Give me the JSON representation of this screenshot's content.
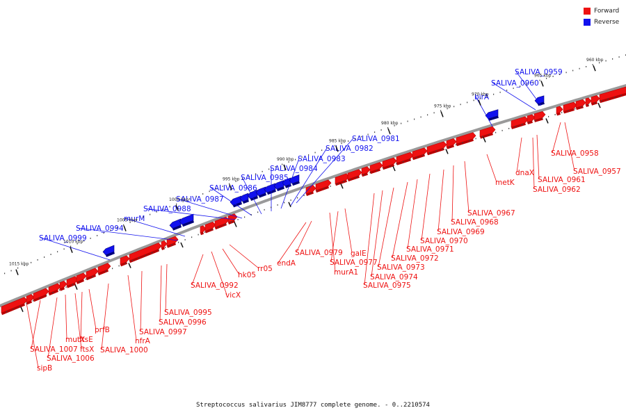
{
  "legend": {
    "forward_label": "Forward",
    "reverse_label": "Reverse",
    "forward_color": "#ee1111",
    "reverse_color": "#1111ee"
  },
  "caption": "Streptococcus salivarius JIM8777 complete genome. - 0..2210574",
  "colors": {
    "forward": "#ee1111",
    "forward_dark": "#b80000",
    "reverse": "#1111ee",
    "reverse_dark": "#00007a",
    "axis": "#9a9a9a",
    "tick": "#111111"
  },
  "scale": {
    "tick_labels": [
      "960 kbp",
      "965 kbp",
      "970 kbp",
      "975 kbp",
      "980 kbp",
      "985 kbp",
      "990 kbp",
      "995 kbp",
      "1000 kbp",
      "1005 kbp",
      "1010 kbp",
      "1015 kbp"
    ]
  },
  "gene_labels": {
    "forward": [
      "SALIVA_0957",
      "SALIVA_0958",
      "SALIVA_0961",
      "SALIVA_0962",
      "dnaX",
      "metK",
      "SALIVA_0967",
      "SALIVA_0968",
      "SALIVA_0969",
      "SALIVA_0970",
      "SALIVA_0971",
      "SALIVA_0972",
      "SALIVA_0973",
      "SALIVA_0974",
      "SALIVA_0975",
      "galE",
      "SALIVA_0977",
      "murA1",
      "SALIVA_0979",
      "endA",
      "rr05",
      "hk05",
      "vicX",
      "SALIVA_0992",
      "SALIVA_0995",
      "SALIVA_0996",
      "SALIVA_0997",
      "nfrA",
      "SALIVA_1000",
      "prfB",
      "ftsE",
      "ftsX",
      "mutX",
      "SALIVA_1006",
      "SALIVA_1007",
      "sipB"
    ],
    "reverse": [
      "SALIVA_0959",
      "SALIVA_0960",
      "birA",
      "SALIVA_0981",
      "SALIVA_0982",
      "SALIVA_0983",
      "SALIVA_0984",
      "SALIVA_0985",
      "SALIVA_0986",
      "SALIVA_0987",
      "SALIVA_0988",
      "murM",
      "SALIVA_0994",
      "SALIVA_0999"
    ]
  }
}
